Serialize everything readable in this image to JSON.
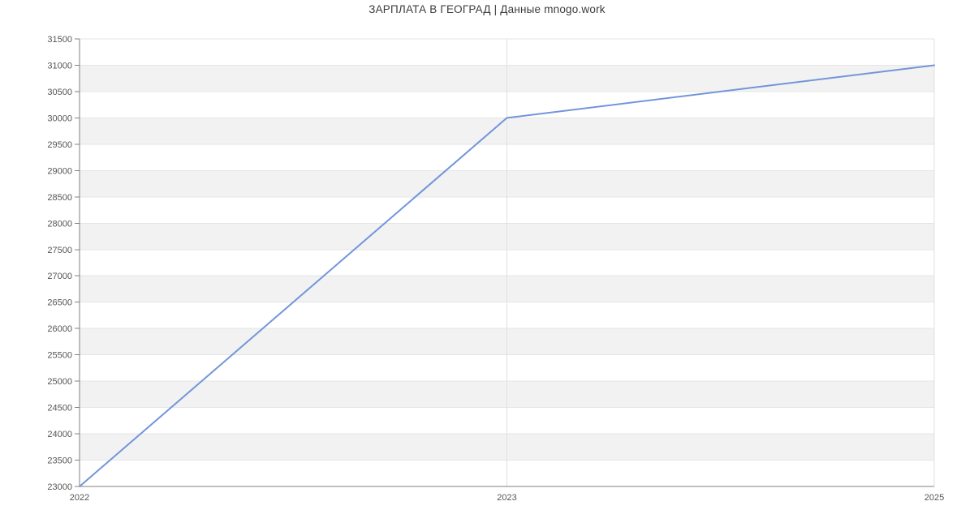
{
  "chart_data": {
    "type": "line",
    "title": "ЗАРПЛАТА В ГЕОГРАД | Данные mnogo.work",
    "categories": [
      "2022",
      "2023",
      "2025"
    ],
    "values": [
      23000,
      30000,
      31000
    ],
    "xlabel": "",
    "ylabel": "",
    "ylim": [
      23000,
      31500
    ],
    "ytick_step": 500,
    "x_scale": "categorical",
    "grid": true,
    "legend": false,
    "band_pattern": "alternating horizontal stripes, white then gray from top",
    "colors": {
      "line": "#7295db",
      "band": "#f2f2f2",
      "h_gridline": "#e5e5e5",
      "v_gridline": "#e0e0e0",
      "axis": "#808080",
      "tick_label": "#555555",
      "title": "#3c3c3c"
    }
  }
}
